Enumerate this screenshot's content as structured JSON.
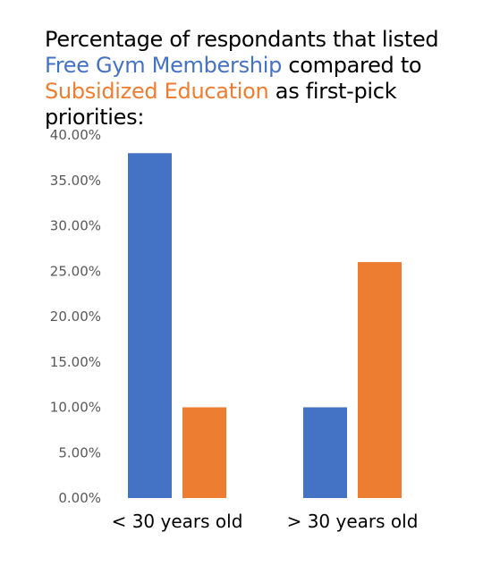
{
  "title": {
    "part1": "Percentage of respondants that listed ",
    "part2": "Free Gym Membership",
    "part3": " compared to ",
    "part4": "Subsidized Education",
    "part5": " as first-pick priorities:"
  },
  "colors": {
    "series1": "#4472C4",
    "series2": "#ED7D31",
    "tick_text": "#595959"
  },
  "chart_data": {
    "type": "bar",
    "title": "Percentage of respondants that listed Free Gym Membership compared to Subsidized Education as first-pick priorities:",
    "categories": [
      "< 30 years old",
      "> 30 years old"
    ],
    "series": [
      {
        "name": "Free Gym Membership",
        "values": [
          0.38,
          0.1
        ]
      },
      {
        "name": "Subsidized Education",
        "values": [
          0.1,
          0.26
        ]
      }
    ],
    "y_ticks": [
      "0.00%",
      "5.00%",
      "10.00%",
      "15.00%",
      "20.00%",
      "25.00%",
      "30.00%",
      "35.00%",
      "40.00%"
    ],
    "ylim": [
      0,
      0.4
    ],
    "grid": false,
    "legend": "none",
    "xlabel": "",
    "ylabel": ""
  }
}
